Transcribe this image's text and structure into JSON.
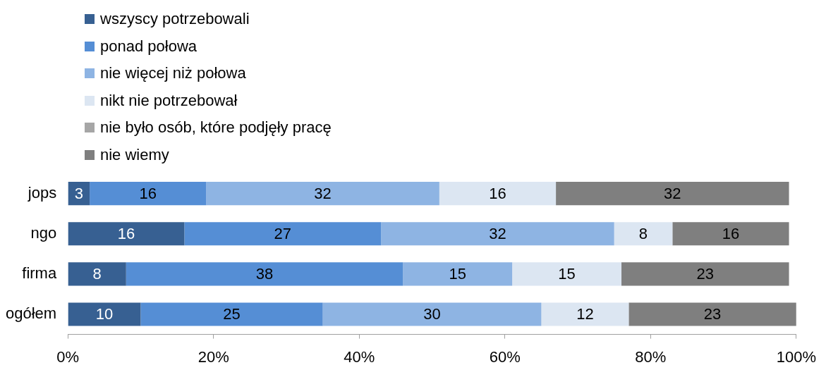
{
  "chart_data": {
    "type": "bar",
    "orientation": "horizontal",
    "stacked": true,
    "data_labels": true,
    "legend": "top left",
    "grid": false,
    "categories": [
      "jops",
      "ngo",
      "firma",
      "ogółem"
    ],
    "xlim": [
      0,
      100
    ],
    "xticks": [
      {
        "value": 0,
        "label": "0%"
      },
      {
        "value": 20,
        "label": "20%"
      },
      {
        "value": 40,
        "label": "40%"
      },
      {
        "value": 60,
        "label": "60%"
      },
      {
        "value": 80,
        "label": "80%"
      },
      {
        "value": 100,
        "label": "100%"
      }
    ],
    "series": [
      {
        "name": "wszyscy potrzebowali",
        "color": "#376092",
        "values": [
          3,
          16,
          8,
          10
        ]
      },
      {
        "name": "ponad połowa",
        "color": "#558ed5",
        "values": [
          16,
          27,
          38,
          25
        ]
      },
      {
        "name": "nie więcej niż połowa",
        "color": "#8eb4e3",
        "values": [
          32,
          32,
          15,
          30
        ]
      },
      {
        "name": "nikt nie potrzebował",
        "color": "#dce6f2",
        "values": [
          16,
          8,
          15,
          12
        ]
      },
      {
        "name": "nie było osób, które podjęły pracę",
        "color": "#a6a6a6",
        "values": [
          null,
          null,
          null,
          null
        ]
      },
      {
        "name": "nie wiemy",
        "color": "#7f7f7f",
        "values": [
          32,
          16,
          23,
          23
        ]
      }
    ]
  }
}
